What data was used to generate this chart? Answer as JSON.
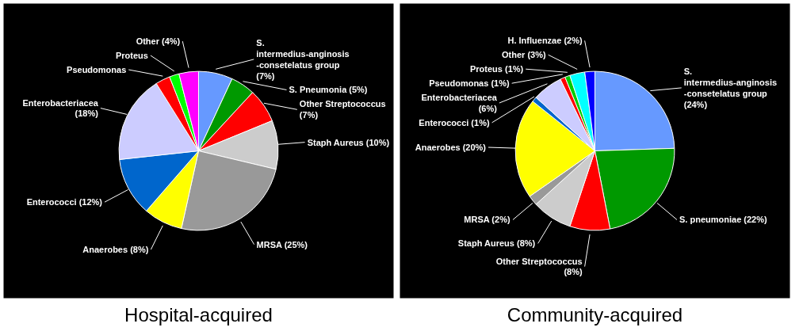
{
  "chart_data": [
    {
      "type": "pie",
      "title": "Hospital-acquired",
      "categories": [
        "S. intermedius-anginosis -consetelatus group",
        "S. Pneumonia",
        "Other Streptococcus",
        "Staph Aureus",
        "MRSA",
        "Anaerobes",
        "Enterococci",
        "Enterobacteriacea",
        "Pseudomonas",
        "Proteus",
        "Other"
      ],
      "values": [
        7,
        5,
        7,
        10,
        25,
        8,
        12,
        18,
        3,
        2,
        4
      ],
      "value_labels": [
        "(7%)",
        "(5%)",
        "(7%)",
        "(10%)",
        "(25%)",
        "(8%)",
        "(12%)",
        "(18%)",
        null,
        null,
        "(4%)"
      ],
      "colors": [
        "#6699ff",
        "#009900",
        "#ff0000",
        "#cccccc",
        "#999999",
        "#ffff00",
        "#0066cc",
        "#ccccff",
        "#ff0000",
        "#00ff00",
        "#ff00ff"
      ],
      "legend": false
    },
    {
      "type": "pie",
      "title": "Community-acquired",
      "categories": [
        "S. intermedius-anginosis -consetelatus group",
        "S. pneumoniae",
        "Other Streptococcus",
        "Staph Aureus",
        "MRSA",
        "Anaerobes",
        "Enterococci",
        "Enterobacteriacea",
        "Pseudomonas",
        "Proteus",
        "Other",
        "H. Influenzae"
      ],
      "values": [
        24,
        22,
        8,
        8,
        2,
        20,
        1,
        6,
        1,
        1,
        3,
        2
      ],
      "value_labels": [
        "(24%)",
        "(22%)",
        "(8%)",
        "(8%)",
        "(2%)",
        "(20%)",
        "(1%)",
        "(6%)",
        "(1%)",
        "(1%)",
        "(3%)",
        "(2%)"
      ],
      "colors": [
        "#6699ff",
        "#009900",
        "#ff0000",
        "#cccccc",
        "#999999",
        "#ffff00",
        "#0066cc",
        "#ccccff",
        "#ff0000",
        "#00cc00",
        "#00ffff",
        "#0000ff"
      ],
      "legend": false
    }
  ]
}
